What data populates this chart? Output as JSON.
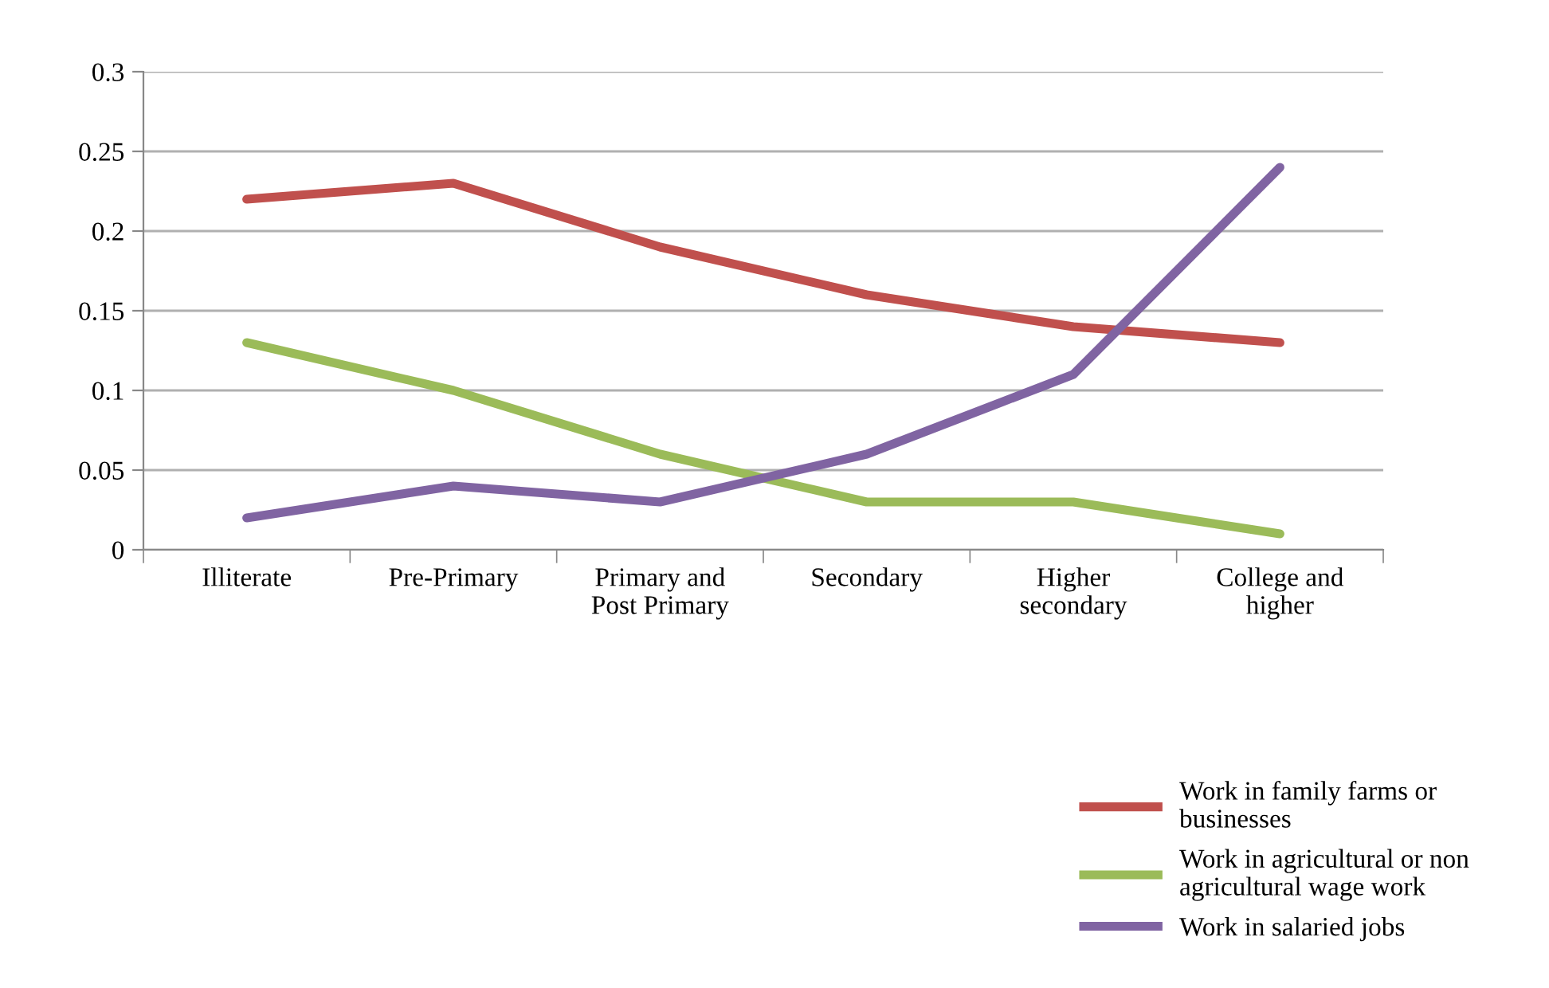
{
  "chart_data": {
    "type": "line",
    "categories": [
      "Illiterate",
      "Pre-Primary",
      "Primary and\nPost Primary",
      "Secondary",
      "Higher\nsecondary",
      "College and\nhigher"
    ],
    "series": [
      {
        "name": "Work in family farms or\nbusinesses",
        "color": "#c0504d",
        "values": [
          0.22,
          0.23,
          0.19,
          0.16,
          0.14,
          0.13
        ]
      },
      {
        "name": "Work in agricultural or non\nagricultural wage work",
        "color": "#9bbb59",
        "values": [
          0.13,
          0.1,
          0.06,
          0.03,
          0.03,
          0.01
        ]
      },
      {
        "name": "Work in salaried jobs",
        "color": "#8064a2",
        "values": [
          0.02,
          0.04,
          0.03,
          0.06,
          0.11,
          0.24
        ]
      }
    ],
    "ylim": [
      0,
      0.3
    ],
    "yticks": [
      0,
      0.05,
      0.1,
      0.15,
      0.2,
      0.25,
      0.3
    ],
    "grid": "y",
    "legend": "bottom right",
    "marker": "none",
    "line_style": "solid"
  }
}
